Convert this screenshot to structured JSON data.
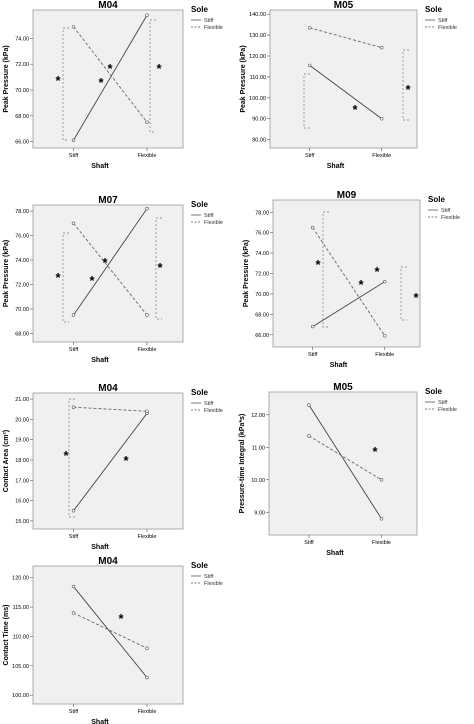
{
  "chart_data": [
    {
      "type": "line",
      "title": "M04",
      "xlabel": "Shaft",
      "ylabel": "Peak Pressure (kPa)",
      "categories": [
        "Stiff",
        "Flexible"
      ],
      "yticks": [
        "66.00",
        "68.00",
        "70.00",
        "72.00",
        "74.00"
      ],
      "ylim": [
        65.5,
        76.2
      ],
      "legend": {
        "title": "Sole",
        "position": "right"
      },
      "series": [
        {
          "name": "Stiff",
          "values": [
            66.1,
            75.8
          ],
          "style": "solid"
        },
        {
          "name": "Flexible",
          "values": [
            74.9,
            67.5
          ],
          "style": "dashed"
        }
      ],
      "annotations": [
        "*",
        "*",
        "*",
        "*"
      ]
    },
    {
      "type": "line",
      "title": "M05",
      "xlabel": "Shaft",
      "ylabel": "Peak Pressure (kPa)",
      "categories": [
        "Stiff",
        "Flexible"
      ],
      "yticks": [
        "80.00",
        "90.00",
        "100.00",
        "110.00",
        "120.00",
        "130.00",
        "140.00"
      ],
      "ylim": [
        76,
        142
      ],
      "legend": {
        "title": "Sole",
        "position": "right"
      },
      "series": [
        {
          "name": "Stiff",
          "values": [
            115.5,
            90.0
          ],
          "style": "solid"
        },
        {
          "name": "Flexible",
          "values": [
            133.5,
            124.0
          ],
          "style": "dashed"
        }
      ],
      "annotations": [
        "*",
        "*"
      ]
    },
    {
      "type": "line",
      "title": "M07",
      "xlabel": "Shaft",
      "ylabel": "Peak Pressure (kPa)",
      "categories": [
        "Stiff",
        "Flexible"
      ],
      "yticks": [
        "68.00",
        "70.00",
        "72.00",
        "74.00",
        "76.00",
        "78.00"
      ],
      "ylim": [
        67.3,
        78.5
      ],
      "legend": {
        "title": "Sole",
        "position": "right"
      },
      "series": [
        {
          "name": "Stiff",
          "values": [
            69.5,
            78.2
          ],
          "style": "solid"
        },
        {
          "name": "Flexible",
          "values": [
            77.0,
            69.5
          ],
          "style": "dashed"
        }
      ],
      "annotations": [
        "*",
        "*",
        "*",
        "*"
      ]
    },
    {
      "type": "line",
      "title": "M09",
      "xlabel": "Shaft",
      "ylabel": "Peak Pressure (kPa)",
      "categories": [
        "Stiff",
        "Flexible"
      ],
      "yticks": [
        "66.00",
        "68.00",
        "70.00",
        "72.00",
        "74.00",
        "76.00",
        "78.00"
      ],
      "ylim": [
        64.8,
        79.2
      ],
      "legend": {
        "title": "Sole",
        "position": "right"
      },
      "series": [
        {
          "name": "Stiff",
          "values": [
            66.8,
            71.2
          ],
          "style": "solid"
        },
        {
          "name": "Flexible",
          "values": [
            76.5,
            65.9
          ],
          "style": "dashed"
        }
      ],
      "annotations": [
        "*",
        "*",
        "*",
        "*"
      ]
    },
    {
      "type": "line",
      "title": "M04",
      "xlabel": "Shaft",
      "ylabel": "Contact Area (cm²)",
      "categories": [
        "Stiff",
        "Flexible"
      ],
      "yticks": [
        "15.00",
        "16.00",
        "17.00",
        "18.00",
        "19.00",
        "20.00",
        "21.00"
      ],
      "ylim": [
        14.6,
        21.3
      ],
      "legend": {
        "title": "Sole",
        "position": "right"
      },
      "series": [
        {
          "name": "Stiff",
          "values": [
            15.5,
            20.3
          ],
          "style": "solid"
        },
        {
          "name": "Flexible",
          "values": [
            20.6,
            20.4
          ],
          "style": "dashed"
        }
      ],
      "annotations": [
        "*",
        "*"
      ]
    },
    {
      "type": "line",
      "title": "M05",
      "xlabel": "Shaft",
      "ylabel": "Pressure-time Integral (kPa*s)",
      "categories": [
        "Stiff",
        "Flexible"
      ],
      "yticks": [
        "9.00",
        "10.00",
        "11.00",
        "12.00"
      ],
      "ylim": [
        8.3,
        12.7
      ],
      "legend": {
        "title": "Sole",
        "position": "right"
      },
      "series": [
        {
          "name": "Stiff",
          "values": [
            12.3,
            8.8
          ],
          "style": "solid"
        },
        {
          "name": "Flexible",
          "values": [
            11.35,
            10.0
          ],
          "style": "dashed"
        }
      ],
      "annotations": [
        "*"
      ]
    },
    {
      "type": "line",
      "title": "M04",
      "xlabel": "Shaft",
      "ylabel": "Contact Time (ms)",
      "categories": [
        "Stiff",
        "Flexible"
      ],
      "yticks": [
        "100.00",
        "105.00",
        "110.00",
        "115.00",
        "120.00"
      ],
      "ylim": [
        98.5,
        122
      ],
      "legend": {
        "title": "Sole",
        "position": "right"
      },
      "series": [
        {
          "name": "Stiff",
          "values": [
            118.5,
            103.0
          ],
          "style": "solid"
        },
        {
          "name": "Flexible",
          "values": [
            114.0,
            108.0
          ],
          "style": "dashed"
        }
      ],
      "annotations": [
        "*"
      ]
    }
  ]
}
